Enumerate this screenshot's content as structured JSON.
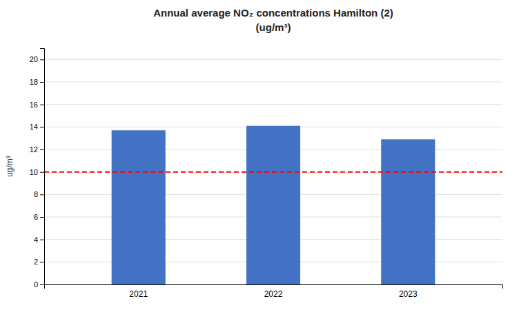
{
  "chart_data": {
    "type": "bar",
    "title": "Annual average NO₂ concentrations Hamilton (2)\n(ug/m³)",
    "categories": [
      "2021",
      "2022",
      "2023"
    ],
    "values": [
      13.7,
      14.1,
      12.9
    ],
    "color": "#4472C4",
    "reference_line": {
      "value": 10,
      "color": "#FF0000"
    },
    "ylabel": "ug/m³",
    "ylim": [
      0,
      21
    ],
    "yticks": [
      0,
      2,
      4,
      6,
      8,
      10,
      12,
      14,
      16,
      18,
      20
    ],
    "grid": true
  }
}
